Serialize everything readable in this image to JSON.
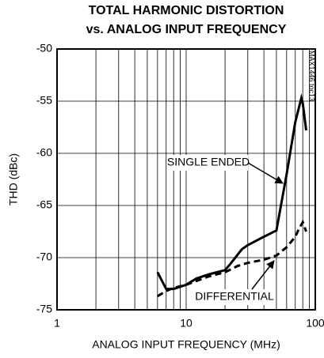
{
  "chart_data": {
    "type": "line",
    "title": "TOTAL HARMONIC DISTORTION",
    "subtitle": "vs. ANALOG INPUT FREQUENCY",
    "x_label": "ANALOG INPUT FREQUENCY (MHz)",
    "y_label": "THD (dBc)",
    "side_note": "MAX1446 toc13",
    "x_log": true,
    "xlim": [
      1,
      100
    ],
    "xticks": [
      1,
      10,
      100
    ],
    "ylim": [
      -75,
      -50
    ],
    "yticks": [
      -75,
      -70,
      -65,
      -60,
      -55,
      -50
    ],
    "grid": true,
    "series": [
      {
        "name": "SINGLE ENDED",
        "color": "#000000",
        "style": "solid",
        "x": [
          6,
          7,
          8,
          10,
          12,
          15,
          20,
          22,
          27,
          30,
          40,
          50,
          60,
          70,
          78,
          80,
          85
        ],
        "values": [
          -71.4,
          -73.0,
          -73.0,
          -72.6,
          -72.0,
          -71.6,
          -71.2,
          -70.6,
          -69.2,
          -68.8,
          -68.0,
          -67.4,
          -62.0,
          -57.0,
          -54.7,
          -55.2,
          -57.8
        ]
      },
      {
        "name": "DIFFERENTIAL",
        "color": "#000000",
        "style": "dashed",
        "x": [
          6,
          7,
          8,
          10,
          15,
          20,
          25,
          30,
          40,
          50,
          60,
          70,
          75,
          80,
          85
        ],
        "values": [
          -73.7,
          -73.2,
          -72.9,
          -72.6,
          -71.8,
          -71.4,
          -70.8,
          -70.5,
          -70.2,
          -69.8,
          -69.0,
          -68.0,
          -67.2,
          -66.6,
          -67.5
        ]
      }
    ]
  }
}
